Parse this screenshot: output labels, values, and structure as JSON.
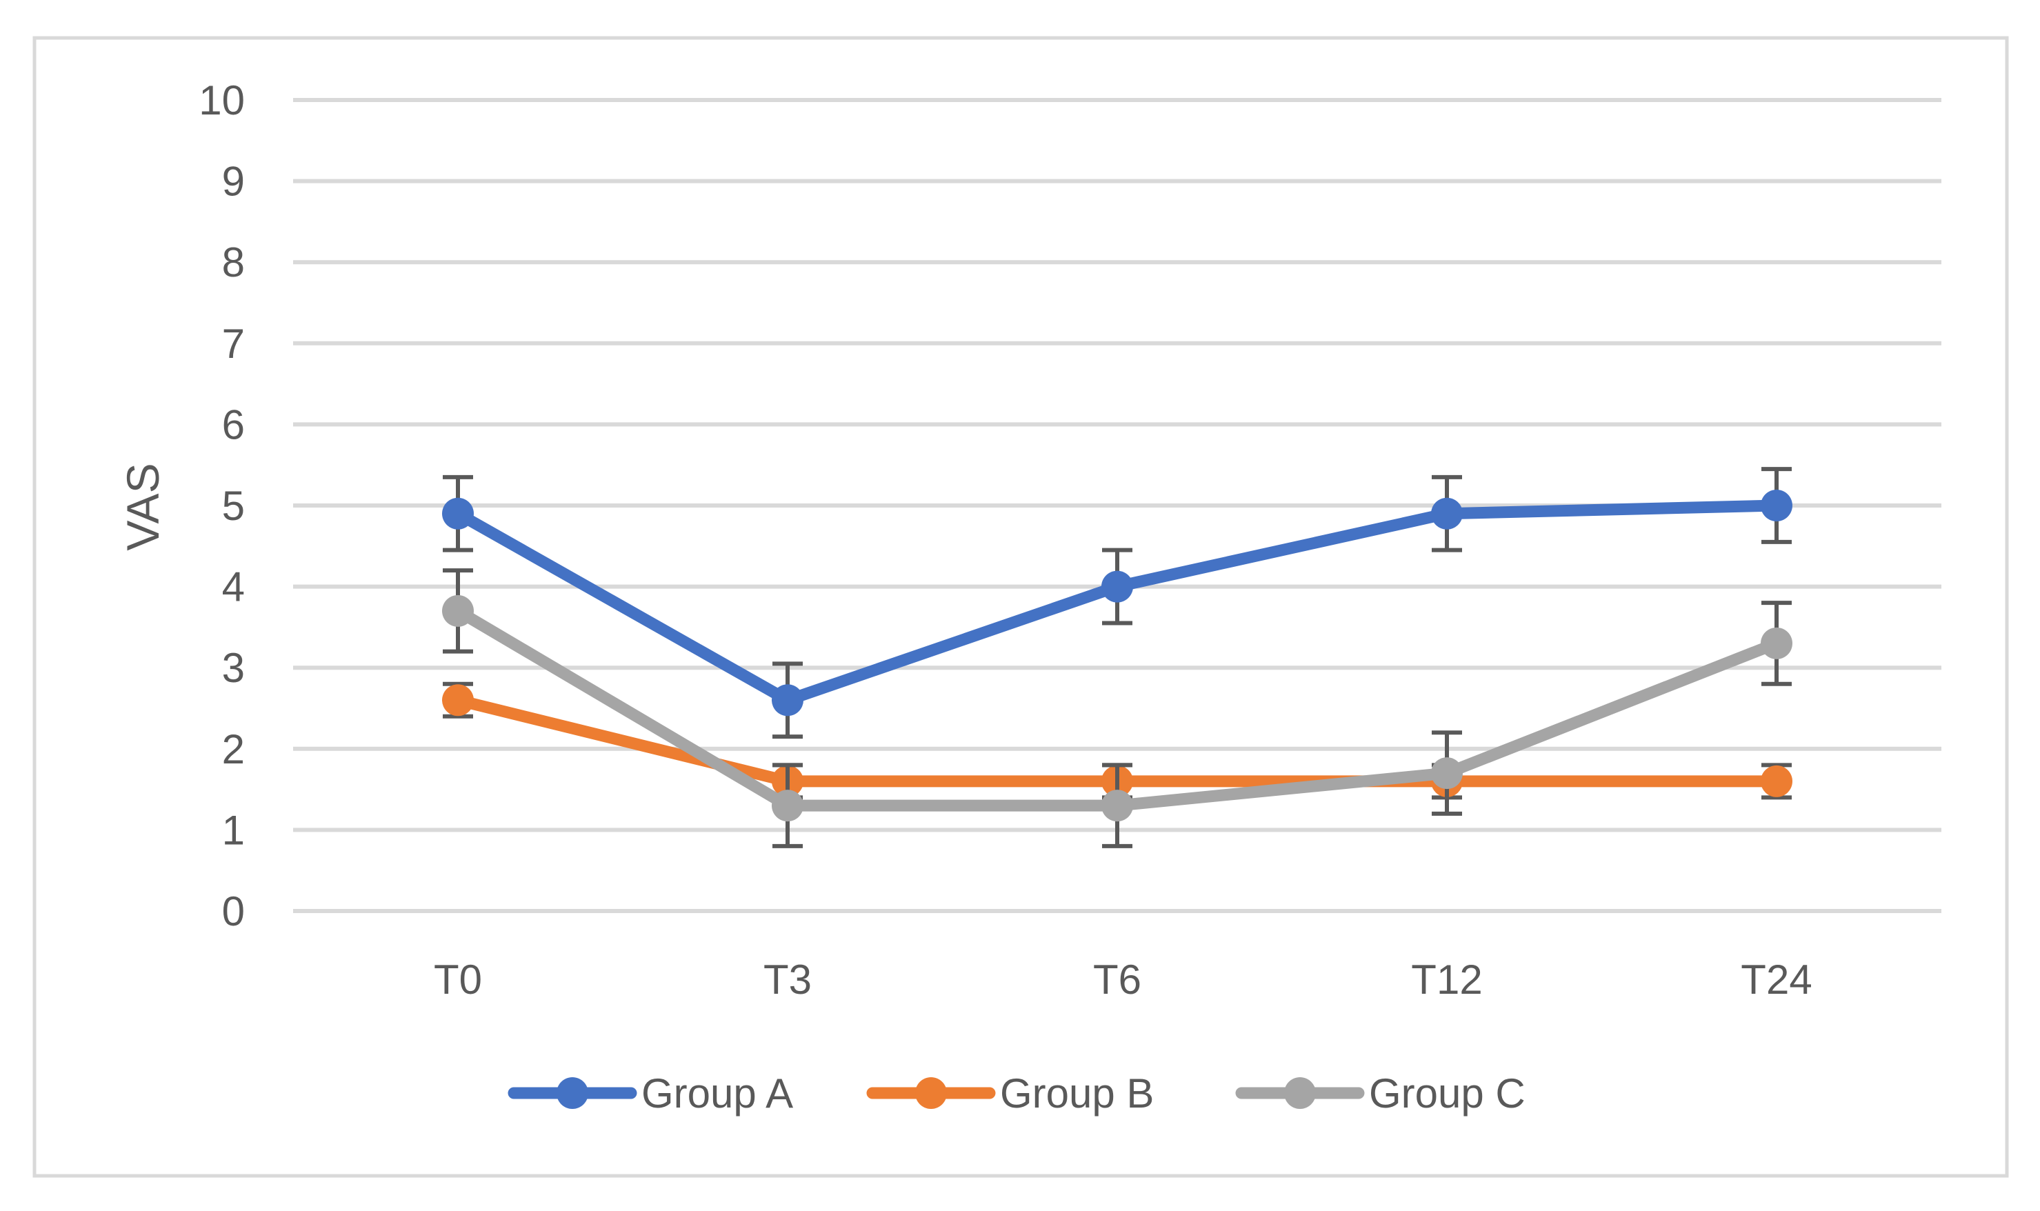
{
  "chart_data": {
    "type": "line",
    "title": "",
    "xlabel": "",
    "ylabel": "VAS",
    "categories": [
      "T0",
      "T3",
      "T6",
      "T12",
      "T24"
    ],
    "ylim": [
      0,
      10
    ],
    "yticks": [
      0,
      1,
      2,
      3,
      4,
      5,
      6,
      7,
      8,
      9,
      10
    ],
    "grid": true,
    "legend_position": "bottom",
    "series": [
      {
        "name": "Group A",
        "color": "#4472c4",
        "values": [
          4.9,
          2.6,
          4.0,
          4.9,
          5.0
        ],
        "errors": [
          0.45,
          0.45,
          0.45,
          0.45,
          0.45
        ]
      },
      {
        "name": "Group B",
        "color": "#ed7d31",
        "values": [
          2.6,
          1.6,
          1.6,
          1.6,
          1.6
        ],
        "errors": [
          0.2,
          0.2,
          0.2,
          0.2,
          0.2
        ]
      },
      {
        "name": "Group C",
        "color": "#a5a5a5",
        "values": [
          3.7,
          1.3,
          1.3,
          1.7,
          3.3
        ],
        "errors": [
          0.5,
          0.5,
          0.5,
          0.5,
          0.5
        ]
      }
    ]
  }
}
